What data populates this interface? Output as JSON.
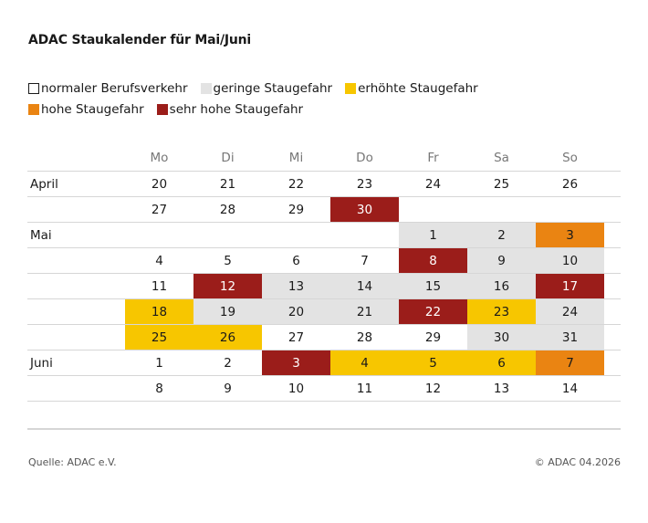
{
  "title": "ADAC Staukalender für Mai/Juni",
  "legend": [
    {
      "label": "normaler Berufsverkehr",
      "level": "normal",
      "color": "#ffffff"
    },
    {
      "label": "geringe Staugefahr",
      "level": "low",
      "color": "#e3e3e3"
    },
    {
      "label": "erhöhte Staugefahr",
      "level": "elevated",
      "color": "#f7c600"
    },
    {
      "label": "hohe Staugefahr",
      "level": "high",
      "color": "#ea8412"
    },
    {
      "label": "sehr hohe Staugefahr",
      "level": "very_high",
      "color": "#9b1d1a"
    }
  ],
  "source": "Quelle: ADAC e.V.",
  "copyright": "© ADAC 04.2026",
  "chart_data": {
    "type": "table",
    "title": "ADAC Staukalender für Mai/Juni",
    "columns": [
      "Mo",
      "Di",
      "Mi",
      "Do",
      "Fr",
      "Sa",
      "So"
    ],
    "rows": [
      {
        "month": "April",
        "days": [
          {
            "day": "20",
            "level": "normal"
          },
          {
            "day": "21",
            "level": "normal"
          },
          {
            "day": "22",
            "level": "normal"
          },
          {
            "day": "23",
            "level": "normal"
          },
          {
            "day": "24",
            "level": "normal"
          },
          {
            "day": "25",
            "level": "normal"
          },
          {
            "day": "26",
            "level": "normal"
          }
        ]
      },
      {
        "month": "",
        "days": [
          {
            "day": "27",
            "level": "normal"
          },
          {
            "day": "28",
            "level": "normal"
          },
          {
            "day": "29",
            "level": "normal"
          },
          {
            "day": "30",
            "level": "very_high"
          },
          null,
          null,
          null
        ]
      },
      {
        "month": "Mai",
        "days": [
          null,
          null,
          null,
          null,
          {
            "day": "1",
            "level": "low"
          },
          {
            "day": "2",
            "level": "low"
          },
          {
            "day": "3",
            "level": "high"
          }
        ]
      },
      {
        "month": "",
        "days": [
          {
            "day": "4",
            "level": "normal"
          },
          {
            "day": "5",
            "level": "normal"
          },
          {
            "day": "6",
            "level": "normal"
          },
          {
            "day": "7",
            "level": "normal"
          },
          {
            "day": "8",
            "level": "very_high"
          },
          {
            "day": "9",
            "level": "low"
          },
          {
            "day": "10",
            "level": "low"
          }
        ]
      },
      {
        "month": "",
        "days": [
          {
            "day": "11",
            "level": "normal"
          },
          {
            "day": "12",
            "level": "very_high"
          },
          {
            "day": "13",
            "level": "low"
          },
          {
            "day": "14",
            "level": "low"
          },
          {
            "day": "15",
            "level": "low"
          },
          {
            "day": "16",
            "level": "low"
          },
          {
            "day": "17",
            "level": "very_high"
          }
        ]
      },
      {
        "month": "",
        "days": [
          {
            "day": "18",
            "level": "elevated"
          },
          {
            "day": "19",
            "level": "low"
          },
          {
            "day": "20",
            "level": "low"
          },
          {
            "day": "21",
            "level": "low"
          },
          {
            "day": "22",
            "level": "very_high"
          },
          {
            "day": "23",
            "level": "elevated"
          },
          {
            "day": "24",
            "level": "low"
          }
        ]
      },
      {
        "month": "",
        "days": [
          {
            "day": "25",
            "level": "elevated"
          },
          {
            "day": "26",
            "level": "elevated"
          },
          {
            "day": "27",
            "level": "normal"
          },
          {
            "day": "28",
            "level": "normal"
          },
          {
            "day": "29",
            "level": "normal"
          },
          {
            "day": "30",
            "level": "low"
          },
          {
            "day": "31",
            "level": "low"
          }
        ]
      },
      {
        "month": "Juni",
        "days": [
          {
            "day": "1",
            "level": "normal"
          },
          {
            "day": "2",
            "level": "normal"
          },
          {
            "day": "3",
            "level": "very_high"
          },
          {
            "day": "4",
            "level": "elevated"
          },
          {
            "day": "5",
            "level": "elevated"
          },
          {
            "day": "6",
            "level": "elevated"
          },
          {
            "day": "7",
            "level": "high"
          }
        ]
      },
      {
        "month": "",
        "days": [
          {
            "day": "8",
            "level": "normal"
          },
          {
            "day": "9",
            "level": "normal"
          },
          {
            "day": "10",
            "level": "normal"
          },
          {
            "day": "11",
            "level": "normal"
          },
          {
            "day": "12",
            "level": "normal"
          },
          {
            "day": "13",
            "level": "normal"
          },
          {
            "day": "14",
            "level": "normal"
          }
        ]
      }
    ]
  }
}
